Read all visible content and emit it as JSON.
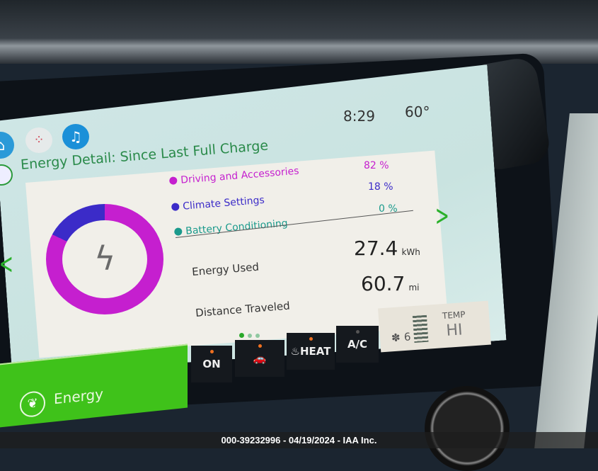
{
  "status": {
    "time": "8:29",
    "temperature": "60°"
  },
  "nav": {
    "icons": [
      "home-icon",
      "apps-icon",
      "music-icon"
    ]
  },
  "title": "Energy Detail: Since Last Full Charge",
  "legend": [
    {
      "label": "Driving and Accessories",
      "value": "82 %",
      "color": "#c51fcf"
    },
    {
      "label": "Climate Settings",
      "value": "18 %",
      "color": "#3b2bc8"
    },
    {
      "label": "Battery Conditioning",
      "value": "0 %",
      "color": "#1a9a8c"
    }
  ],
  "chart_data": {
    "type": "pie",
    "categories": [
      "Driving and Accessories",
      "Climate Settings",
      "Battery Conditioning"
    ],
    "values": [
      82,
      18,
      0
    ],
    "colors": [
      "#c51fcf",
      "#3b2bc8",
      "#1a9a8c"
    ]
  },
  "stats": {
    "energy_used_label": "Energy Used",
    "energy_used_value": "27.4",
    "energy_used_unit": "kWh",
    "distance_label": "Distance Traveled",
    "distance_value": "60.7",
    "distance_unit": "mi"
  },
  "bottom_nav": {
    "energy_label": "Energy"
  },
  "climate": {
    "on_label": "ON",
    "heat_label": "HEAT",
    "ac_label": "A/C",
    "fan_speed": "6",
    "temp_label": "TEMP",
    "temp_value": "HI"
  },
  "page_indicator": {
    "pages": 3,
    "current": 1
  },
  "watermark": "000-39232996 - 04/19/2024 - IAA Inc."
}
